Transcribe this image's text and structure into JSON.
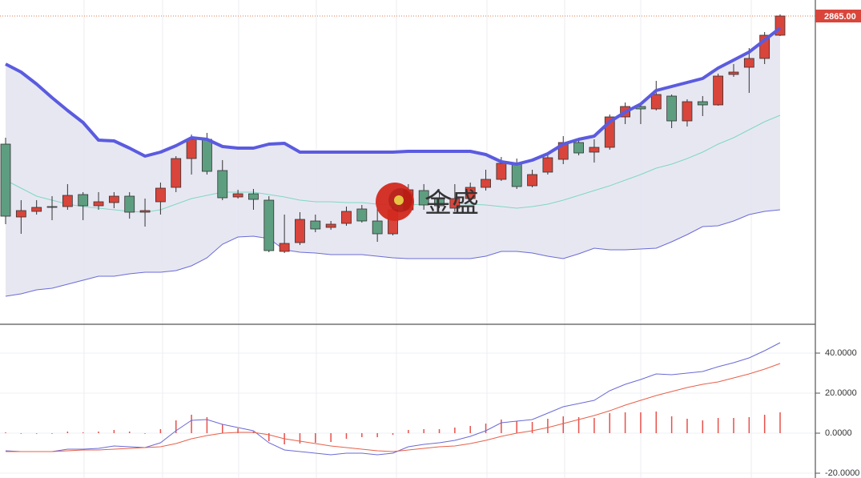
{
  "chart_data": [
    {
      "type": "candlestick",
      "watermark": "金盛",
      "ylim": [
        2480,
        2885
      ],
      "last_price": {
        "value": 2865,
        "label": "2865.00"
      },
      "up_color": "#d9453b",
      "down_color": "#5e9e80",
      "open": [
        2705,
        2614,
        2621,
        2627,
        2627,
        2642,
        2628,
        2632,
        2640,
        2620,
        2633,
        2651,
        2687,
        2711,
        2672,
        2639,
        2643,
        2635,
        2571,
        2582,
        2609,
        2601,
        2606,
        2624,
        2609,
        2593,
        2623,
        2647,
        2638,
        2625,
        2637,
        2651,
        2661,
        2681,
        2653,
        2670,
        2686,
        2707,
        2695,
        2701,
        2739,
        2752,
        2749,
        2765,
        2734,
        2758,
        2754,
        2792,
        2801,
        2812,
        2841
      ],
      "high": [
        2713,
        2635,
        2635,
        2640,
        2655,
        2645,
        2645,
        2645,
        2645,
        2637,
        2657,
        2690,
        2717,
        2719,
        2685,
        2648,
        2649,
        2640,
        2617,
        2620,
        2617,
        2609,
        2627,
        2629,
        2625,
        2627,
        2655,
        2655,
        2645,
        2655,
        2657,
        2673,
        2689,
        2687,
        2673,
        2695,
        2715,
        2711,
        2711,
        2742,
        2757,
        2757,
        2784,
        2767,
        2761,
        2765,
        2793,
        2805,
        2825,
        2845,
        2867
      ],
      "low": [
        2605,
        2593,
        2617,
        2610,
        2623,
        2610,
        2623,
        2625,
        2612,
        2602,
        2617,
        2645,
        2667,
        2667,
        2635,
        2637,
        2623,
        2570,
        2569,
        2579,
        2595,
        2598,
        2603,
        2607,
        2583,
        2591,
        2620,
        2623,
        2625,
        2621,
        2635,
        2647,
        2659,
        2649,
        2651,
        2667,
        2680,
        2691,
        2682,
        2698,
        2730,
        2730,
        2747,
        2725,
        2727,
        2740,
        2753,
        2789,
        2769,
        2805,
        2840
      ],
      "close": [
        2615,
        2622,
        2626,
        2626,
        2641,
        2628,
        2633,
        2640,
        2620,
        2622,
        2650,
        2687,
        2711,
        2671,
        2638,
        2643,
        2636,
        2572,
        2581,
        2611,
        2599,
        2605,
        2621,
        2609,
        2593,
        2623,
        2648,
        2629,
        2628,
        2637,
        2651,
        2661,
        2681,
        2652,
        2667,
        2688,
        2707,
        2694,
        2701,
        2739,
        2752,
        2749,
        2767,
        2734,
        2758,
        2754,
        2790,
        2795,
        2812,
        2841,
        2865
      ],
      "series": [
        {
          "color": "#5b5be0",
          "values": [
            2805,
            2795,
            2780,
            2763,
            2747,
            2732,
            2710,
            2709,
            2700,
            2690,
            2695,
            2703,
            2713,
            2711,
            2702,
            2700,
            2700,
            2705,
            2706,
            2695,
            2695,
            2695,
            2695,
            2695,
            2695,
            2695,
            2696,
            2696,
            2696,
            2696,
            2696,
            2692,
            2683,
            2680,
            2685,
            2693,
            2705,
            2711,
            2715,
            2733,
            2745,
            2755,
            2772,
            2777,
            2782,
            2787,
            2800,
            2810,
            2820,
            2835,
            2850
          ]
        },
        {
          "color": "#7fd8c2",
          "values": [
            2660,
            2650,
            2640,
            2635,
            2630,
            2627,
            2625,
            2623,
            2621,
            2620,
            2623,
            2630,
            2637,
            2641,
            2645,
            2645,
            2645,
            2642,
            2639,
            2635,
            2633,
            2633,
            2632,
            2632,
            2630,
            2629,
            2629,
            2630,
            2631,
            2631,
            2630,
            2629,
            2627,
            2625,
            2627,
            2630,
            2635,
            2641,
            2647,
            2653,
            2660,
            2667,
            2675,
            2680,
            2687,
            2695,
            2705,
            2713,
            2723,
            2733,
            2741
          ]
        },
        {
          "color": "#6b6bd8",
          "values": [
            2515,
            2518,
            2523,
            2525,
            2530,
            2535,
            2540,
            2540,
            2543,
            2545,
            2545,
            2547,
            2553,
            2563,
            2580,
            2589,
            2590,
            2587,
            2573,
            2570,
            2569,
            2567,
            2567,
            2567,
            2565,
            2563,
            2562,
            2562,
            2562,
            2562,
            2562,
            2565,
            2571,
            2571,
            2569,
            2565,
            2562,
            2568,
            2575,
            2573,
            2573,
            2574,
            2575,
            2583,
            2592,
            2602,
            2603,
            2609,
            2617,
            2621,
            2623
          ]
        }
      ]
    },
    {
      "type": "macd",
      "ylim": [
        -22.4,
        54.4
      ],
      "yticks": [
        {
          "value": 40,
          "label": "40.0000"
        },
        {
          "value": 20,
          "label": "20.0000"
        },
        {
          "value": 0,
          "label": "0.0000"
        },
        {
          "value": -20,
          "label": "-20.0000"
        }
      ],
      "histogram_color": "#e8504a",
      "histogram": [
        0.4,
        0,
        0,
        0,
        0.8,
        0.4,
        0.8,
        1.6,
        0.8,
        0,
        2,
        6.4,
        9.2,
        8,
        4.4,
        2.4,
        0.8,
        -4,
        -5.6,
        -5.2,
        -4.8,
        -4.4,
        -2.8,
        -2,
        -2,
        -0.8,
        1.6,
        2,
        2,
        2.8,
        3.6,
        4.8,
        6.8,
        6,
        5.6,
        7.2,
        8.4,
        8,
        7.6,
        10,
        10.4,
        10.4,
        10.8,
        8.4,
        7.2,
        6.4,
        7.6,
        7.6,
        8,
        9.2,
        10.4
      ],
      "series": [
        {
          "color": "#6a6ad6",
          "values": [
            -8.8,
            -9.2,
            -9.2,
            -9.2,
            -8,
            -8,
            -7.6,
            -6.4,
            -6.8,
            -7.2,
            -4.8,
            1.2,
            6.4,
            6.8,
            4.4,
            2.8,
            1.2,
            -4.8,
            -8.4,
            -9.2,
            -10,
            -10.8,
            -10,
            -10,
            -10.8,
            -10,
            -6.8,
            -5.6,
            -4.8,
            -3.6,
            -1.6,
            1.2,
            5.2,
            6,
            6.8,
            10,
            13.2,
            14.8,
            16.4,
            21.2,
            24.4,
            26.8,
            29.6,
            29.2,
            30,
            30.8,
            33.2,
            35.2,
            37.6,
            41.2,
            45.2
          ]
        },
        {
          "color": "#e8604a",
          "values": [
            -9.2,
            -9.2,
            -9.2,
            -9.2,
            -8.8,
            -8.4,
            -8.4,
            -8,
            -7.6,
            -7.2,
            -6.8,
            -5.2,
            -2.8,
            -1.2,
            0,
            0.4,
            0.4,
            -0.8,
            -2.8,
            -4,
            -5.2,
            -6.4,
            -7.2,
            -8,
            -8.8,
            -9.2,
            -8.4,
            -7.6,
            -6.8,
            -6.4,
            -5.2,
            -3.6,
            -1.6,
            0,
            1.2,
            2.8,
            4.8,
            6.8,
            8.8,
            11.2,
            14,
            16.4,
            18.8,
            20.8,
            22.8,
            24.4,
            25.6,
            27.6,
            29.6,
            32,
            34.8
          ]
        }
      ]
    }
  ]
}
